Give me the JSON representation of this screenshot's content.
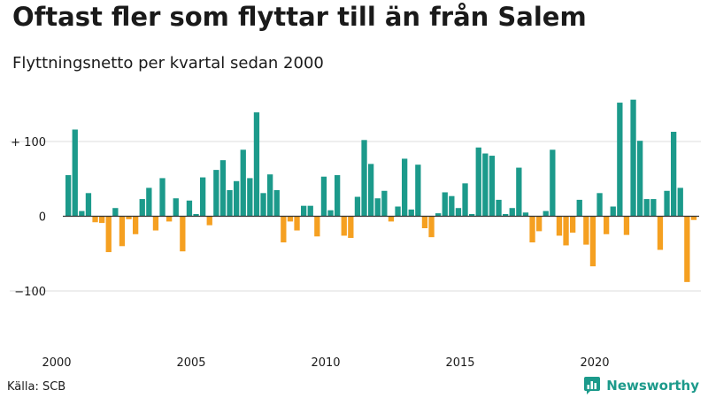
{
  "title": "Oftast fler som flyttar till än från Salem",
  "subtitle": "Flyttningsnetto per kvartal sedan 2000",
  "source": "Källa: SCB",
  "brand": {
    "name": "Newsworthy",
    "icon": "newsworthy-logo-icon"
  },
  "colors": {
    "positive": "#1c9a8b",
    "negative": "#f5a021",
    "grid": "#dddddd",
    "zero": "#333333"
  },
  "chart_data": {
    "type": "bar",
    "title": "Oftast fler som flyttar till än från Salem",
    "subtitle": "Flyttningsnetto per kvartal sedan 2000",
    "xlabel": "",
    "ylabel": "",
    "grid": true,
    "ylim": [
      -125,
      160
    ],
    "yticks": [
      {
        "value": 100,
        "label": "+ 100"
      },
      {
        "value": 0,
        "label": "0"
      },
      {
        "value": -100,
        "label": "−100"
      }
    ],
    "xticks": [
      {
        "value": 2000,
        "label": "2000"
      },
      {
        "value": 2005,
        "label": "2005"
      },
      {
        "value": 2010,
        "label": "2010"
      },
      {
        "value": 2015,
        "label": "2015"
      },
      {
        "value": 2020,
        "label": "2020"
      }
    ],
    "start_year": 2000,
    "values": [
      55,
      116,
      7,
      31,
      -8,
      -9,
      -48,
      11,
      -40,
      -4,
      -24,
      23,
      38,
      -19,
      51,
      -7,
      24,
      -47,
      21,
      3,
      52,
      -12,
      62,
      75,
      35,
      47,
      89,
      51,
      139,
      31,
      56,
      35,
      -35,
      -7,
      -19,
      14,
      14,
      -27,
      53,
      8,
      55,
      -26,
      -29,
      26,
      102,
      70,
      24,
      34,
      -7,
      13,
      77,
      9,
      69,
      -16,
      -28,
      4,
      32,
      27,
      11,
      44,
      3,
      92,
      84,
      81,
      22,
      3,
      11,
      65,
      5,
      -35,
      -20,
      7,
      89,
      -26,
      -39,
      -22,
      22,
      -38,
      -67,
      31,
      -24,
      13,
      152,
      -25,
      156,
      101,
      23,
      23,
      -45,
      34,
      113,
      38,
      -88,
      -5
    ]
  }
}
